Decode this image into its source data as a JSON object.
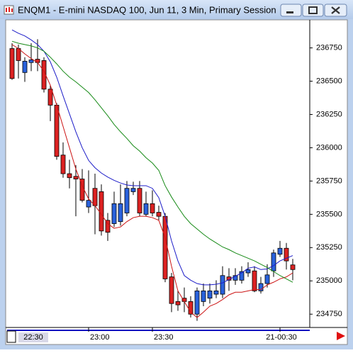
{
  "chart_data": {
    "type": "candlestick",
    "title": "ENQM1 - E-mini NASDAQ 100, Jun 11, 3 Min, Primary Session",
    "cursor_label": "22:30",
    "categories": [
      null,
      null,
      null,
      null,
      null,
      null,
      null,
      null,
      null,
      null,
      null,
      null,
      "23:00",
      null,
      null,
      null,
      null,
      null,
      null,
      null,
      null,
      null,
      "23:30",
      null,
      null,
      null,
      null,
      null,
      null,
      null,
      null,
      null,
      null,
      null,
      null,
      null,
      null,
      null,
      null,
      null,
      null,
      null,
      "21-00:30",
      null,
      null
    ],
    "open": [
      236745,
      236745,
      236565,
      236640,
      236665,
      236655,
      236440,
      236320,
      235945,
      235805,
      235785,
      235765,
      235555,
      235695,
      235670,
      235455,
      235430,
      235445,
      235510,
      235670,
      235695,
      235500,
      235580,
      235515,
      235485,
      235030,
      234845,
      234870,
      234845,
      234750,
      234845,
      234870,
      234900,
      234900,
      235030,
      235005,
      235005,
      235060,
      235075,
      234925,
      234980,
      235075,
      235200,
      235245,
      235120
    ],
    "high": [
      236785,
      236775,
      236680,
      236785,
      236815,
      236680,
      236470,
      236335,
      236040,
      235910,
      235870,
      235840,
      235830,
      235805,
      235725,
      235510,
      235670,
      235725,
      235750,
      235745,
      235750,
      235670,
      235680,
      235565,
      235510,
      235060,
      234925,
      234950,
      234885,
      234950,
      234980,
      234980,
      235005,
      235110,
      235095,
      235095,
      235110,
      235140,
      235110,
      235030,
      235125,
      235235,
      235300,
      235285,
      235165
    ],
    "low": [
      236510,
      236520,
      236495,
      236575,
      236575,
      236415,
      236200,
      235910,
      235775,
      235695,
      235485,
      235590,
      235510,
      235350,
      235340,
      235300,
      235405,
      235415,
      235485,
      235645,
      235485,
      235485,
      235485,
      235455,
      234990,
      234765,
      234775,
      234765,
      234725,
      234700,
      234810,
      234830,
      234870,
      234870,
      234925,
      234970,
      234980,
      235030,
      234915,
      234905,
      234950,
      235030,
      235180,
      235085,
      235005
    ],
    "close": [
      236520,
      236655,
      236650,
      236660,
      236640,
      236440,
      236320,
      235935,
      235805,
      235775,
      235765,
      235605,
      235605,
      235565,
      235375,
      235365,
      235580,
      235580,
      235695,
      235695,
      235510,
      235580,
      235510,
      235485,
      235015,
      234830,
      234820,
      234845,
      234750,
      234925,
      234925,
      234925,
      234925,
      235040,
      235005,
      235040,
      235070,
      235085,
      234925,
      234980,
      235045,
      235210,
      235245,
      235150,
      235085
    ],
    "up_color": "#2a62dc",
    "down_color": "#dc2222",
    "series": [
      {
        "color": "#1c1cc8",
        "values": [
          236885,
          236860,
          236840,
          236810,
          236775,
          236725,
          236645,
          236530,
          236390,
          236255,
          236120,
          236000,
          235905,
          235850,
          235810,
          235780,
          235755,
          235735,
          235720,
          235715,
          235715,
          235715,
          235695,
          235625,
          235485,
          235300,
          235150,
          235040,
          235005,
          234980,
          234970,
          234970,
          234975,
          234985,
          235010,
          235035,
          235060,
          235095,
          235105,
          235085,
          235090,
          235115,
          235150,
          235170,
          235190
        ]
      },
      {
        "color": "#cc1414",
        "values": [
          236775,
          236745,
          236705,
          236670,
          236640,
          236575,
          236470,
          236320,
          236160,
          236000,
          235840,
          235715,
          235615,
          235565,
          235500,
          235430,
          235395,
          235405,
          235445,
          235475,
          235485,
          235485,
          235475,
          235455,
          235325,
          235110,
          234925,
          234845,
          234765,
          234725,
          234765,
          234810,
          234830,
          234860,
          234895,
          234915,
          234915,
          234925,
          234935,
          234935,
          234970,
          234990,
          235015,
          235030,
          235060
        ]
      },
      {
        "color": "#168a16",
        "values": [
          236800,
          236785,
          236775,
          236765,
          236750,
          236725,
          236680,
          236630,
          236575,
          236530,
          236495,
          236455,
          236415,
          236360,
          236300,
          236240,
          236175,
          236120,
          236070,
          236015,
          235975,
          235925,
          235885,
          235830,
          235715,
          235630,
          235555,
          235485,
          235430,
          235390,
          235350,
          235315,
          235285,
          235255,
          235235,
          235210,
          235190,
          235170,
          235150,
          235125,
          235100,
          235070,
          235040,
          235015,
          234990
        ]
      }
    ],
    "ylim": [
      234650,
      236950
    ],
    "yticks": [
      234750,
      235000,
      235250,
      235500,
      235750,
      236000,
      236250,
      236500,
      236750
    ]
  }
}
